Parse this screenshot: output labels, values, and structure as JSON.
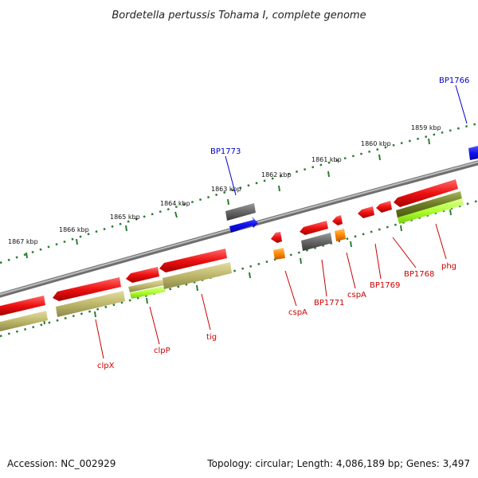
{
  "title": "Bordetella pertussis Tohama I, complete genome",
  "footer": {
    "accession": "Accession: NC_002929",
    "topology": "Topology: circular; Length: 4,086,189 bp; Genes: 3,497"
  },
  "colors": {
    "backbone": "#8a8a8a",
    "tick": "#2e7d32",
    "gene_red": "#ee1111",
    "gene_gray": "#666666",
    "gene_blue": "#1010ee",
    "gene_orange": "#ff8800",
    "gene_khaki": "#bdb76b",
    "gene_olive": "#7b8a2a",
    "gene_lime": "#adff2f",
    "label_red": "#cc0000",
    "label_blue": "#0000cc"
  },
  "ticks": {
    "major": [
      {
        "label": "1867 kbp"
      },
      {
        "label": "1866 kbp"
      },
      {
        "label": "1865 kbp"
      },
      {
        "label": "1864 kbp"
      },
      {
        "label": "1863 kbp"
      },
      {
        "label": "1862 kbp"
      },
      {
        "label": "1861 kbp"
      },
      {
        "label": "1860 kbp"
      },
      {
        "label": "1859 kbp"
      }
    ]
  },
  "labels": {
    "clpX": "clpX",
    "clpP": "clpP",
    "tig": "tig",
    "cspA1": "cspA",
    "BP1771": "BP1771",
    "cspA2": "cspA",
    "BP1769": "BP1769",
    "BP1768": "BP1768",
    "phg": "phg",
    "BP1773": "BP1773",
    "BP1766": "BP1766"
  }
}
